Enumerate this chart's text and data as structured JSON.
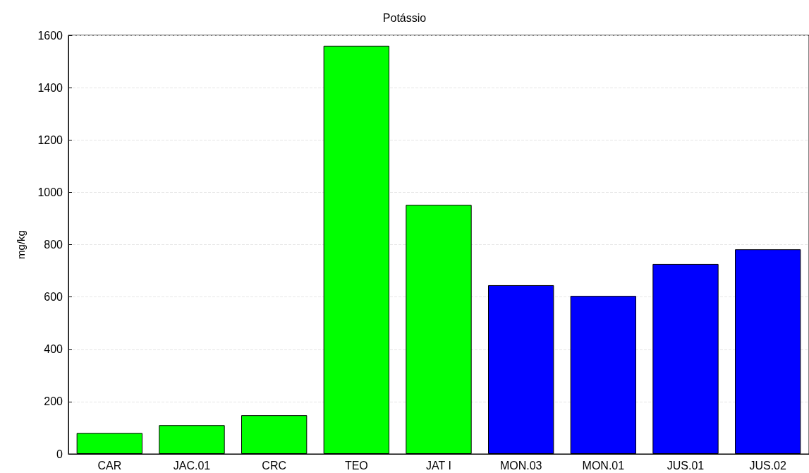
{
  "chart_data": {
    "type": "bar",
    "title": "Potássio",
    "ylabel": "mg/kg",
    "categories": [
      "CAR",
      "JAC.01",
      "CRC",
      "TEO",
      "JAT I",
      "MON.03",
      "MON.01",
      "JUS.01",
      "JUS.02"
    ],
    "values": [
      80,
      110,
      148,
      1560,
      952,
      645,
      604,
      726,
      782
    ],
    "colors": [
      "#00ff00",
      "#00ff00",
      "#00ff00",
      "#00ff00",
      "#00ff00",
      "#0000ff",
      "#0000ff",
      "#0000ff",
      "#0000ff"
    ],
    "ylim": [
      0,
      1600
    ],
    "yticks": [
      0,
      200,
      400,
      600,
      800,
      1000,
      1200,
      1400,
      1600
    ],
    "grid": "y"
  }
}
